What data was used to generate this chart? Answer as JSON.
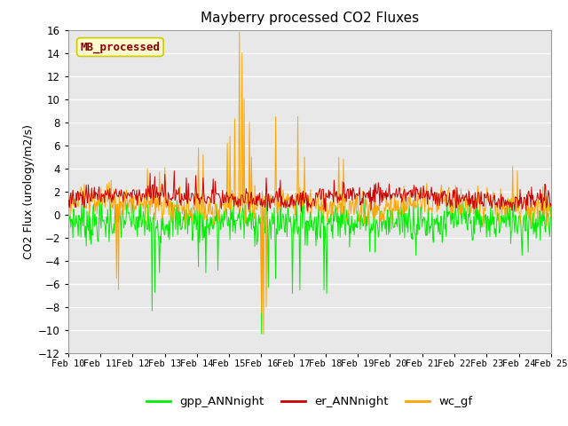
{
  "title": "Mayberry processed CO2 Fluxes",
  "ylabel": "CO2 Flux (urology/m2/s)",
  "ylim": [
    -12,
    16
  ],
  "yticks": [
    -12,
    -10,
    -8,
    -6,
    -4,
    -2,
    0,
    2,
    4,
    6,
    8,
    10,
    12,
    14,
    16
  ],
  "date_labels": [
    "Feb 10",
    "Feb 11",
    "Feb 12",
    "Feb 13",
    "Feb 14",
    "Feb 15",
    "Feb 16",
    "Feb 17",
    "Feb 18",
    "Feb 19",
    "Feb 20",
    "Feb 21",
    "Feb 22",
    "Feb 23",
    "Feb 24",
    "Feb 25"
  ],
  "legend_label": "MB_processed",
  "legend_text_color": "#8B0000",
  "legend_box_facecolor": "#FFFACD",
  "legend_box_edgecolor": "#CCCC00",
  "colors": {
    "gpp_ANNnight": "#00EE00",
    "er_ANNnight": "#CC0000",
    "wc_gf": "#FFA500"
  },
  "bg_color": "#E8E8E8",
  "grid_color": "#FFFFFF",
  "linewidth": 0.7,
  "n_points": 720
}
